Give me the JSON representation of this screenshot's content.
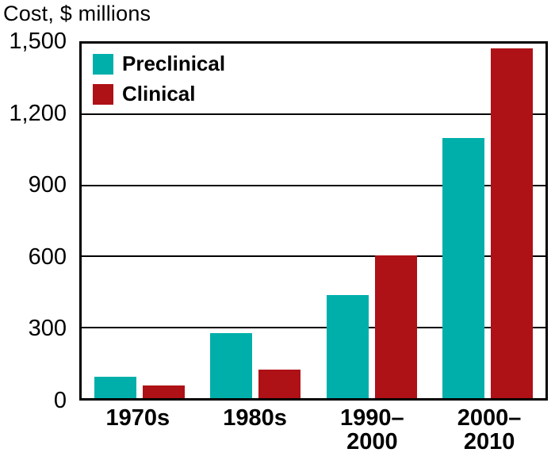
{
  "chart_data": {
    "type": "bar",
    "title": "Cost, $ millions",
    "categories": [
      "1970s",
      "1980s",
      "1990–2000",
      "2000–2010"
    ],
    "category_lines": [
      [
        "1970s"
      ],
      [
        "1980s"
      ],
      [
        "1990–",
        "2000"
      ],
      [
        "2000–",
        "2010"
      ]
    ],
    "series": [
      {
        "name": "Preclinical",
        "color": "#00AFAA",
        "values": [
          90,
          275,
          435,
          1100
        ]
      },
      {
        "name": "Clinical",
        "color": "#AE1116",
        "values": [
          55,
          120,
          605,
          1480
        ]
      }
    ],
    "xlabel": "",
    "ylabel": "Cost, $ millions",
    "ylim": [
      0,
      1500
    ],
    "yticks": [
      0,
      300,
      600,
      900,
      1200,
      1500
    ],
    "ytick_labels": [
      "0",
      "300",
      "600",
      "900",
      "1,200",
      "1,500"
    ],
    "grid": true,
    "legend_position": "top-left"
  }
}
